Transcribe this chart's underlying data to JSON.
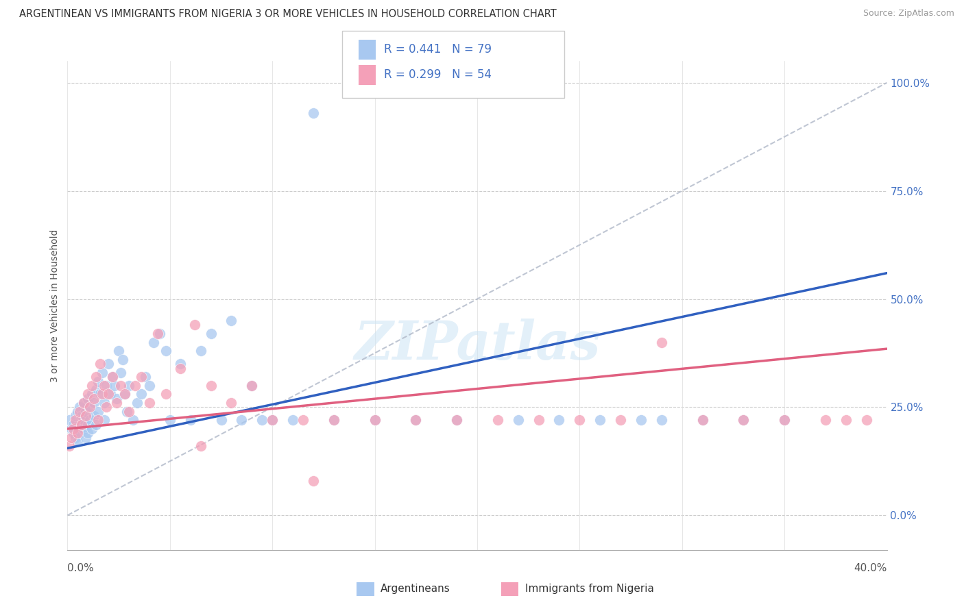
{
  "title": "ARGENTINEAN VS IMMIGRANTS FROM NIGERIA 3 OR MORE VEHICLES IN HOUSEHOLD CORRELATION CHART",
  "source": "Source: ZipAtlas.com",
  "ylabel": "3 or more Vehicles in Household",
  "ytick_positions": [
    0.0,
    0.25,
    0.5,
    0.75,
    1.0
  ],
  "ytick_labels": [
    "0.0%",
    "25.0%",
    "50.0%",
    "75.0%",
    "100.0%"
  ],
  "xmin": 0.0,
  "xmax": 0.4,
  "ymin": -0.08,
  "ymax": 1.05,
  "color_blue": "#a8c8f0",
  "color_pink": "#f4a0b8",
  "color_blue_line": "#3060c0",
  "color_pink_line": "#e06080",
  "color_dashed": "#b0b8c8",
  "watermark": "ZIPatlas",
  "blue_line_x0": 0.0,
  "blue_line_y0": 0.155,
  "blue_line_x1": 0.4,
  "blue_line_y1": 0.56,
  "pink_line_x0": 0.0,
  "pink_line_y0": 0.2,
  "pink_line_x1": 0.4,
  "pink_line_y1": 0.385,
  "dash_line_x0": 0.0,
  "dash_line_y0": 0.0,
  "dash_line_x1": 0.4,
  "dash_line_y1": 1.0,
  "blue_scatter_x": [
    0.001,
    0.002,
    0.003,
    0.003,
    0.004,
    0.004,
    0.005,
    0.005,
    0.006,
    0.006,
    0.007,
    0.007,
    0.008,
    0.008,
    0.008,
    0.009,
    0.009,
    0.01,
    0.01,
    0.01,
    0.011,
    0.011,
    0.012,
    0.012,
    0.013,
    0.013,
    0.014,
    0.014,
    0.015,
    0.015,
    0.016,
    0.017,
    0.018,
    0.018,
    0.019,
    0.02,
    0.021,
    0.022,
    0.023,
    0.024,
    0.025,
    0.026,
    0.027,
    0.028,
    0.029,
    0.03,
    0.032,
    0.034,
    0.036,
    0.038,
    0.04,
    0.042,
    0.045,
    0.048,
    0.05,
    0.055,
    0.06,
    0.065,
    0.07,
    0.075,
    0.08,
    0.085,
    0.09,
    0.095,
    0.1,
    0.11,
    0.12,
    0.13,
    0.15,
    0.17,
    0.19,
    0.22,
    0.24,
    0.26,
    0.28,
    0.29,
    0.31,
    0.33,
    0.35
  ],
  "blue_scatter_y": [
    0.22,
    0.2,
    0.21,
    0.19,
    0.23,
    0.18,
    0.24,
    0.17,
    0.25,
    0.19,
    0.23,
    0.21,
    0.26,
    0.2,
    0.22,
    0.24,
    0.18,
    0.27,
    0.21,
    0.19,
    0.25,
    0.22,
    0.28,
    0.2,
    0.26,
    0.23,
    0.29,
    0.21,
    0.31,
    0.24,
    0.28,
    0.33,
    0.26,
    0.22,
    0.3,
    0.35,
    0.28,
    0.32,
    0.3,
    0.27,
    0.38,
    0.33,
    0.36,
    0.28,
    0.24,
    0.3,
    0.22,
    0.26,
    0.28,
    0.32,
    0.3,
    0.4,
    0.42,
    0.38,
    0.22,
    0.35,
    0.22,
    0.38,
    0.42,
    0.22,
    0.45,
    0.22,
    0.3,
    0.22,
    0.22,
    0.22,
    0.93,
    0.22,
    0.22,
    0.22,
    0.22,
    0.22,
    0.22,
    0.22,
    0.22,
    0.22,
    0.22,
    0.22,
    0.22
  ],
  "pink_scatter_x": [
    0.001,
    0.002,
    0.003,
    0.004,
    0.005,
    0.006,
    0.007,
    0.008,
    0.009,
    0.01,
    0.011,
    0.012,
    0.013,
    0.014,
    0.015,
    0.016,
    0.017,
    0.018,
    0.019,
    0.02,
    0.022,
    0.024,
    0.026,
    0.028,
    0.03,
    0.033,
    0.036,
    0.04,
    0.044,
    0.048,
    0.055,
    0.062,
    0.07,
    0.08,
    0.09,
    0.1,
    0.115,
    0.13,
    0.15,
    0.17,
    0.19,
    0.21,
    0.23,
    0.25,
    0.27,
    0.29,
    0.31,
    0.33,
    0.35,
    0.37,
    0.38,
    0.39,
    0.12,
    0.065
  ],
  "pink_scatter_y": [
    0.16,
    0.18,
    0.2,
    0.22,
    0.19,
    0.24,
    0.21,
    0.26,
    0.23,
    0.28,
    0.25,
    0.3,
    0.27,
    0.32,
    0.22,
    0.35,
    0.28,
    0.3,
    0.25,
    0.28,
    0.32,
    0.26,
    0.3,
    0.28,
    0.24,
    0.3,
    0.32,
    0.26,
    0.42,
    0.28,
    0.34,
    0.44,
    0.3,
    0.26,
    0.3,
    0.22,
    0.22,
    0.22,
    0.22,
    0.22,
    0.22,
    0.22,
    0.22,
    0.22,
    0.22,
    0.4,
    0.22,
    0.22,
    0.22,
    0.22,
    0.22,
    0.22,
    0.08,
    0.16
  ]
}
